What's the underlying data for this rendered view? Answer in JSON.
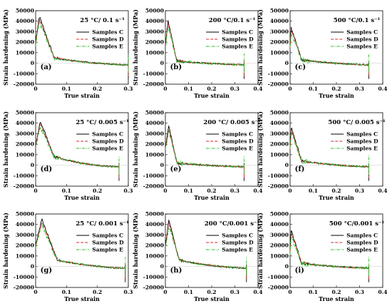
{
  "chart_data": [
    {
      "type": "line",
      "panel": "(a)",
      "condition": "25 °C/ 0.1 s⁻¹",
      "xlabel": "True strain",
      "ylabel": "Strain hardening (MPa)",
      "xlim": [
        0,
        0.3
      ],
      "ylim": [
        -20000,
        50000
      ],
      "xticks": [
        "0",
        "0.1",
        "0.2",
        "0.3"
      ],
      "yticks": [
        "-20000",
        "-10000",
        "0",
        "10000",
        "20000",
        "30000",
        "40000",
        "50000"
      ],
      "legend": [
        "Samples C",
        "Samples D",
        "Samples E"
      ],
      "end_strain": 0.3,
      "peak": [
        0.012,
        45000
      ],
      "post": [
        0.06,
        5000
      ]
    },
    {
      "type": "line",
      "panel": "(b)",
      "condition": "200 °C/0.1 s⁻¹",
      "xlabel": "True strain",
      "ylabel": "Strain hardening (MPa)",
      "xlim": [
        0,
        0.4
      ],
      "ylim": [
        -20000,
        50000
      ],
      "xticks": [
        "0",
        "0.1",
        "0.2",
        "0.3",
        "0.4"
      ],
      "yticks": [
        "-20000",
        "-10000",
        "0",
        "10000",
        "20000",
        "30000",
        "40000",
        "50000"
      ],
      "legend": [
        "Samples C",
        "Samples D",
        "Samples E"
      ],
      "end_strain": 0.34,
      "peak": [
        0.012,
        40000
      ],
      "post": [
        0.05,
        2000
      ]
    },
    {
      "type": "line",
      "panel": "(c)",
      "condition": "500 °C/0.1 s⁻¹",
      "xlabel": "True strain",
      "ylabel": "Strain hardening (MPa)",
      "xlim": [
        0,
        0.4
      ],
      "ylim": [
        -20000,
        50000
      ],
      "xticks": [
        "0",
        "0.1",
        "0.2",
        "0.3",
        "0.4"
      ],
      "yticks": [
        "-20000",
        "-10000",
        "0",
        "10000",
        "20000",
        "30000",
        "40000",
        "50000"
      ],
      "legend": [
        "Samples C",
        "Samples D",
        "Samples E"
      ],
      "end_strain": 0.34,
      "peak": [
        0.004,
        34000
      ],
      "post": [
        0.05,
        3000
      ]
    },
    {
      "type": "line",
      "panel": "(d)",
      "condition": "25 °C/ 0.005 s⁻¹",
      "xlabel": "True strain",
      "ylabel": "Strain hardening (MPa)",
      "xlim": [
        0,
        0.3
      ],
      "ylim": [
        -20000,
        50000
      ],
      "xticks": [
        "0",
        "0.1",
        "0.2",
        "0.3"
      ],
      "yticks": [
        "-20000",
        "-10000",
        "0",
        "10000",
        "20000",
        "30000",
        "40000",
        "50000"
      ],
      "legend": [
        "Samples C",
        "Samples D",
        "Samples E"
      ],
      "end_strain": 0.27,
      "peak": [
        0.015,
        42000
      ],
      "post": [
        0.06,
        8000
      ]
    },
    {
      "type": "line",
      "panel": "(e)",
      "condition": "200 °C/ 0.005 s⁻¹",
      "xlabel": "True strain",
      "ylabel": "Strain hardening (MPa)",
      "xlim": [
        0,
        0.4
      ],
      "ylim": [
        -20000,
        50000
      ],
      "xticks": [
        "0",
        "0.1",
        "0.2",
        "0.3",
        "0.4"
      ],
      "yticks": [
        "-20000",
        "-10000",
        "0",
        "10000",
        "20000",
        "30000",
        "40000",
        "50000"
      ],
      "legend": [
        "Samples C",
        "Samples D",
        "Samples E"
      ],
      "end_strain": 0.34,
      "peak": [
        0.015,
        37000
      ],
      "post": [
        0.05,
        2000
      ]
    },
    {
      "type": "line",
      "panel": "(f)",
      "condition": "500 °C/ 0.005 s⁻¹",
      "xlabel": "True strain",
      "ylabel": "Strain hardening (MPa)",
      "xlim": [
        0,
        0.4
      ],
      "ylim": [
        -20000,
        50000
      ],
      "xticks": [
        "0",
        "0.1",
        "0.2",
        "0.3",
        "0.4"
      ],
      "yticks": [
        "-20000",
        "-10000",
        "0",
        "10000",
        "20000",
        "30000",
        "40000",
        "50000"
      ],
      "legend": [
        "Samples C",
        "Samples D",
        "Samples E"
      ],
      "end_strain": 0.34,
      "peak": [
        0.005,
        36000
      ],
      "post": [
        0.05,
        4000
      ]
    },
    {
      "type": "line",
      "panel": "(g)",
      "condition": "25 °C/ 0.001 s⁻¹",
      "xlabel": "True strain",
      "ylabel": "Strain hardening (MPa)",
      "xlim": [
        0,
        0.3
      ],
      "ylim": [
        -20000,
        50000
      ],
      "xticks": [
        "0",
        "0.1",
        "0.2",
        "0.3"
      ],
      "yticks": [
        "-20000",
        "-10000",
        "0",
        "10000",
        "20000",
        "30000",
        "40000",
        "50000"
      ],
      "legend": [
        "Samples C",
        "Samples D",
        "Samples E"
      ],
      "end_strain": 0.29,
      "peak": [
        0.02,
        45000
      ],
      "post": [
        0.07,
        6000
      ]
    },
    {
      "type": "line",
      "panel": "(h)",
      "condition": "200 °C/0.001 s⁻¹",
      "xlabel": "True strain",
      "ylabel": "Strain hardening (MPa)",
      "xlim": [
        0,
        0.4
      ],
      "ylim": [
        -20000,
        50000
      ],
      "xticks": [
        "0",
        "0.1",
        "0.2",
        "0.3",
        "0.4"
      ],
      "yticks": [
        "-20000",
        "-10000",
        "0",
        "10000",
        "20000",
        "30000",
        "40000",
        "50000"
      ],
      "legend": [
        "Samples C",
        "Samples D",
        "Samples E"
      ],
      "end_strain": 0.35,
      "peak": [
        0.015,
        44000
      ],
      "post": [
        0.06,
        6000
      ]
    },
    {
      "type": "line",
      "panel": "(i)",
      "condition": "500 °C/0.001 s⁻¹",
      "xlabel": "True strain",
      "ylabel": "Strain hardening (MPa)",
      "xlim": [
        0,
        0.4
      ],
      "ylim": [
        -20000,
        50000
      ],
      "xticks": [
        "0",
        "0.1",
        "0.2",
        "0.3",
        "0.4"
      ],
      "yticks": [
        "-20000",
        "-10000",
        "0",
        "10000",
        "20000",
        "30000",
        "40000",
        "50000"
      ],
      "legend": [
        "Samples C",
        "Samples D",
        "Samples E"
      ],
      "end_strain": 0.34,
      "peak": [
        0.005,
        34000
      ],
      "post": [
        0.05,
        3000
      ]
    }
  ],
  "series_style": {
    "colors": [
      "#000000",
      "#d62728",
      "#22bb22"
    ],
    "dashes": [
      "",
      "4,2",
      "4,1.5,1,1.5"
    ]
  }
}
